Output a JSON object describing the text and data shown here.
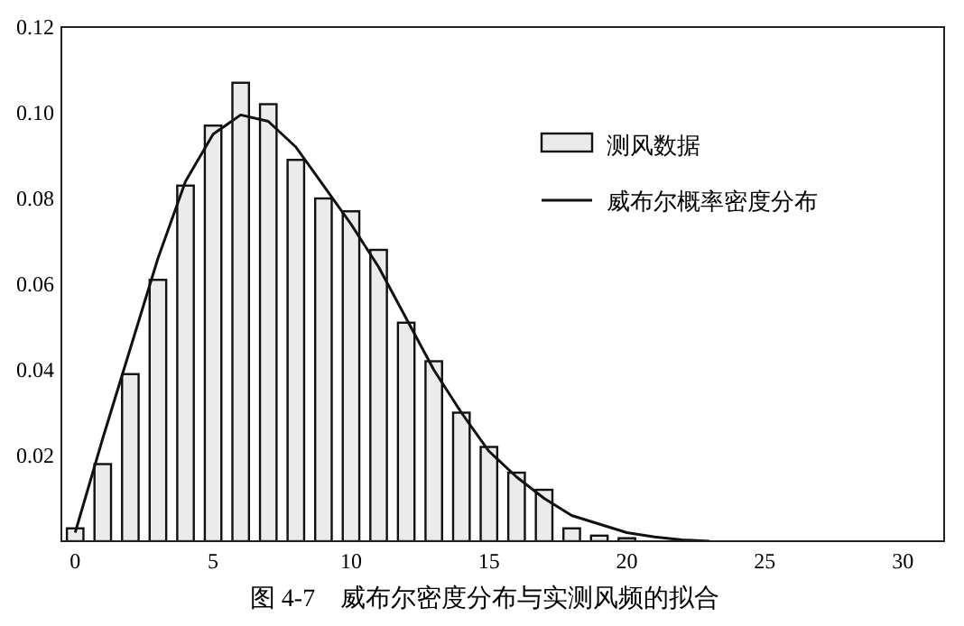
{
  "chart_data": {
    "type": "bar",
    "annotations": [
      "图 4-7　威布尔密度分布与实测风频的拟合"
    ],
    "xlim": [
      -0.5,
      31.5
    ],
    "xticks": [
      0,
      5,
      10,
      15,
      20,
      25,
      30
    ],
    "ylim": [
      0,
      0.12
    ],
    "yticks": [
      0.02,
      0.04,
      0.06,
      0.08,
      {
        "value": 0.1,
        "label": "0.10"
      },
      0.12
    ],
    "legend": "top right",
    "series": [
      {
        "name": "测风数据",
        "color": "#ebebeb",
        "x": [
          0,
          1,
          2,
          3,
          4,
          5,
          6,
          7,
          8,
          9,
          10,
          11,
          12,
          13,
          14,
          15,
          16,
          17,
          18,
          19,
          20
        ],
        "values": [
          0.003,
          0.018,
          0.039,
          0.061,
          0.083,
          0.097,
          0.107,
          0.102,
          0.089,
          0.08,
          0.077,
          0.068,
          0.051,
          0.042,
          0.03,
          0.022,
          0.016,
          0.012,
          0.003,
          0.0013,
          0.0007
        ]
      },
      {
        "name": "威布尔概率密度分布",
        "type": "line",
        "color": "#111111",
        "x": [
          0,
          1,
          2,
          3,
          4,
          5,
          6,
          7,
          8,
          9,
          10,
          11,
          12,
          13,
          14,
          15,
          16,
          17,
          18,
          19,
          20,
          21,
          22,
          23
        ],
        "values": [
          0.002,
          0.024,
          0.045,
          0.066,
          0.084,
          0.095,
          0.0995,
          0.098,
          0.092,
          0.083,
          0.074,
          0.064,
          0.052,
          0.04,
          0.03,
          0.021,
          0.015,
          0.01,
          0.006,
          0.004,
          0.002,
          0.001,
          0.0003,
          0
        ]
      }
    ]
  }
}
